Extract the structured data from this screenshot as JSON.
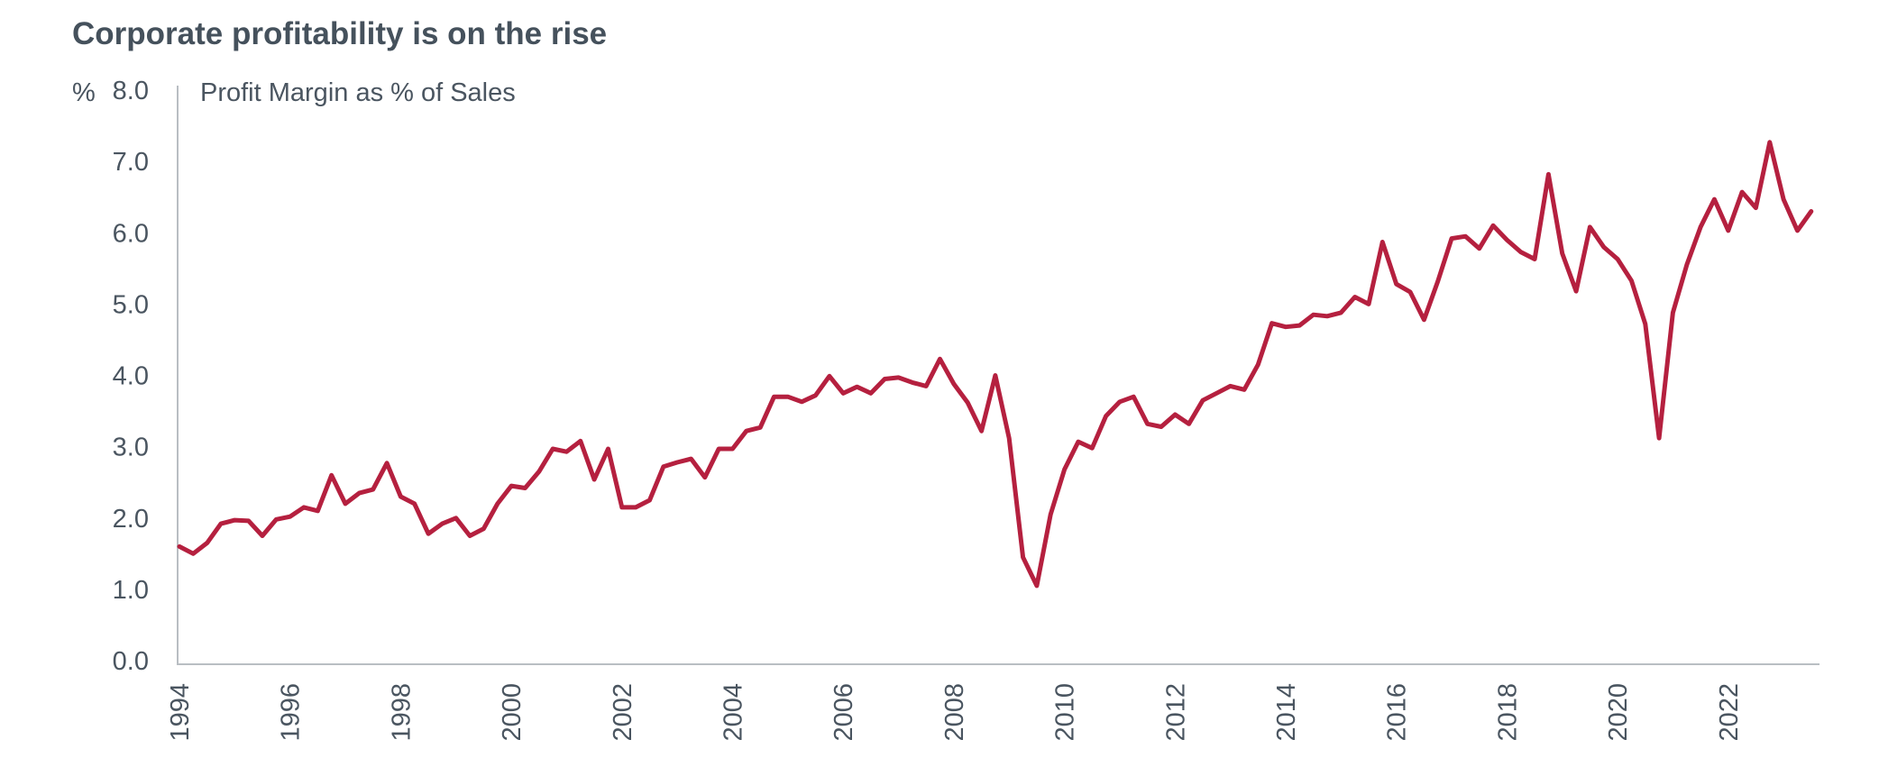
{
  "chart_data": {
    "type": "line",
    "title": "Corporate profitability is on the rise",
    "ylabel_unit": "%",
    "series_label": "Profit Margin as % of Sales",
    "ylim": [
      0,
      8
    ],
    "y_ticks": [
      "0.0",
      "1.0",
      "2.0",
      "3.0",
      "4.0",
      "5.0",
      "6.0",
      "7.0",
      "8.0"
    ],
    "x_ticks": [
      "1994",
      "1996",
      "1998",
      "2000",
      "2002",
      "2004",
      "2006",
      "2008",
      "2010",
      "2012",
      "2014",
      "2016",
      "2018",
      "2020",
      "2022"
    ],
    "grid": false,
    "line_color": "#b5203f",
    "series": [
      {
        "name": "Profit Margin as % of Sales",
        "x": [
          1994.0,
          1994.25,
          1994.5,
          1994.75,
          1995.0,
          1995.25,
          1995.5,
          1995.75,
          1996.0,
          1996.25,
          1996.5,
          1996.75,
          1997.0,
          1997.25,
          1997.5,
          1997.75,
          1998.0,
          1998.25,
          1998.5,
          1998.75,
          1999.0,
          1999.25,
          1999.5,
          1999.75,
          2000.0,
          2000.25,
          2000.5,
          2000.75,
          2001.0,
          2001.25,
          2001.5,
          2001.75,
          2002.0,
          2002.25,
          2002.5,
          2002.75,
          2003.0,
          2003.25,
          2003.5,
          2003.75,
          2004.0,
          2004.25,
          2004.5,
          2004.75,
          2005.0,
          2005.25,
          2005.5,
          2005.75,
          2006.0,
          2006.25,
          2006.5,
          2006.75,
          2007.0,
          2007.25,
          2007.5,
          2007.75,
          2008.0,
          2008.25,
          2008.5,
          2008.75,
          2009.0,
          2009.25,
          2009.5,
          2009.75,
          2010.0,
          2010.25,
          2010.5,
          2010.75,
          2011.0,
          2011.25,
          2011.5,
          2011.75,
          2012.0,
          2012.25,
          2012.5,
          2012.75,
          2013.0,
          2013.25,
          2013.5,
          2013.75,
          2014.0,
          2014.25,
          2014.5,
          2014.75,
          2015.0,
          2015.25,
          2015.5,
          2015.75,
          2016.0,
          2016.25,
          2016.5,
          2016.75,
          2017.0,
          2017.25,
          2017.5,
          2017.75,
          2018.0,
          2018.25,
          2018.5,
          2018.75,
          2019.0,
          2019.25,
          2019.5,
          2019.75,
          2020.0,
          2020.25,
          2020.5,
          2020.75,
          2021.0,
          2021.25,
          2021.5,
          2021.75,
          2022.0,
          2022.25,
          2022.5,
          2022.75,
          2023.0,
          2023.25,
          2023.5
        ],
        "values": [
          1.6,
          1.5,
          1.65,
          1.92,
          1.97,
          1.96,
          1.75,
          1.98,
          2.02,
          2.15,
          2.1,
          2.6,
          2.2,
          2.35,
          2.4,
          2.77,
          2.3,
          2.2,
          1.78,
          1.92,
          2.0,
          1.75,
          1.85,
          2.2,
          2.45,
          2.42,
          2.65,
          2.97,
          2.93,
          3.08,
          2.54,
          2.97,
          2.15,
          2.15,
          2.25,
          2.72,
          2.78,
          2.83,
          2.57,
          2.97,
          2.97,
          3.22,
          3.27,
          3.7,
          3.7,
          3.63,
          3.72,
          3.99,
          3.75,
          3.84,
          3.75,
          3.95,
          3.97,
          3.9,
          3.85,
          4.23,
          3.88,
          3.62,
          3.22,
          4.0,
          3.12,
          1.45,
          1.05,
          2.05,
          2.68,
          3.07,
          2.98,
          3.43,
          3.63,
          3.7,
          3.32,
          3.28,
          3.45,
          3.32,
          3.65,
          3.75,
          3.85,
          3.8,
          4.15,
          4.73,
          4.68,
          4.7,
          4.85,
          4.83,
          4.88,
          5.1,
          5.0,
          5.87,
          5.28,
          5.17,
          4.78,
          5.32,
          5.92,
          5.95,
          5.78,
          6.1,
          5.9,
          5.73,
          5.63,
          6.82,
          5.71,
          5.18,
          6.08,
          5.8,
          5.63,
          5.33,
          4.72,
          3.12,
          4.88,
          5.55,
          6.08,
          6.47,
          6.03,
          6.57,
          6.35,
          7.27,
          6.47,
          6.03,
          6.3
        ]
      }
    ]
  }
}
